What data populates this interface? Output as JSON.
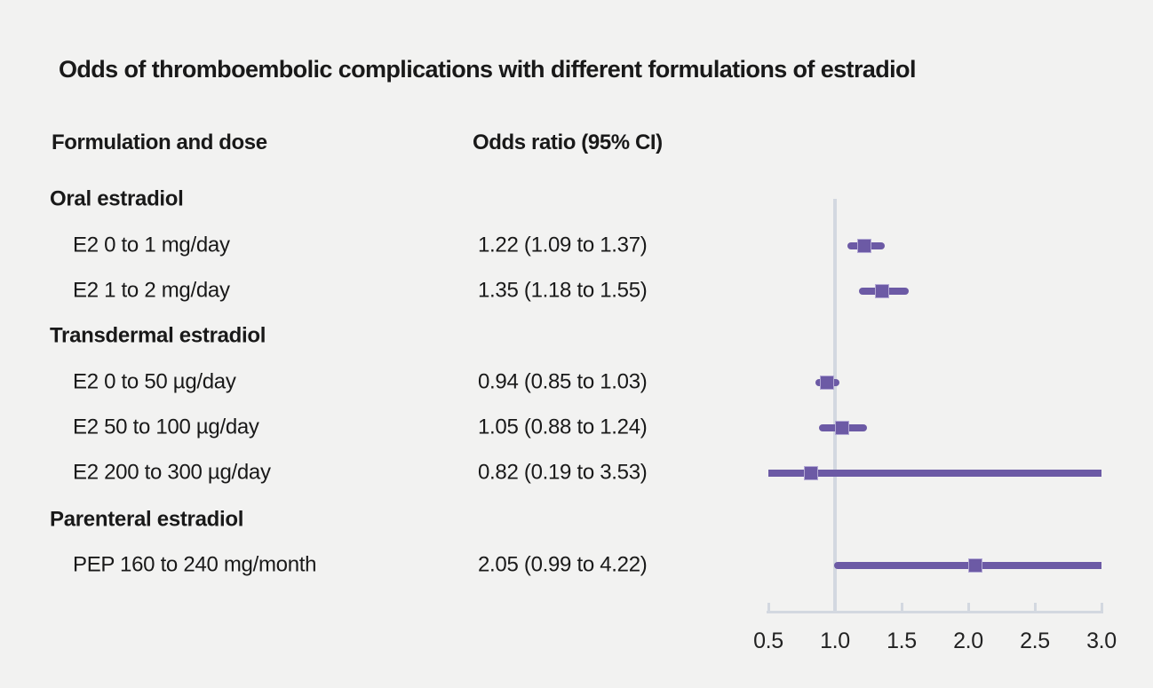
{
  "title": "Odds of thromboembolic complications with different formulations of estradiol",
  "columns": {
    "formulation": "Formulation and dose",
    "odds_ratio": "Odds ratio (95% CI)"
  },
  "axis": {
    "min": 0.5,
    "max": 3.0,
    "ticks": [
      0.5,
      1.0,
      1.5,
      2.0,
      2.5,
      3.0
    ],
    "tick_labels": [
      "0.5",
      "1.0",
      "1.5",
      "2.0",
      "2.5",
      "3.0"
    ],
    "reference_value": 1.0
  },
  "colors": {
    "marker_purple": "#6c5aa5",
    "marker_edge": "#b2a8d4",
    "axis_gray": "#d3d8e0",
    "background": "#f2f2f1",
    "text": "#191919"
  },
  "chart_data": {
    "type": "forest",
    "title": "Odds of thromboembolic complications with different formulations of estradiol",
    "xlabel": "",
    "xlim": [
      0.5,
      3.0
    ],
    "x_ticks": [
      0.5,
      1.0,
      1.5,
      2.0,
      2.5,
      3.0
    ],
    "reference_line": 1.0,
    "grid": false,
    "legend": "none",
    "columns": [
      "Formulation and dose",
      "Odds ratio (95% CI)"
    ],
    "rows": [
      {
        "kind": "section",
        "label": "Oral estradiol"
      },
      {
        "kind": "item",
        "label": "E2 0 to 1 mg/day",
        "or_text": "1.22 (1.09 to 1.37)",
        "estimate": 1.22,
        "ci_low": 1.09,
        "ci_high": 1.37
      },
      {
        "kind": "item",
        "label": "E2 1 to 2 mg/day",
        "or_text": "1.35 (1.18 to 1.55)",
        "estimate": 1.35,
        "ci_low": 1.18,
        "ci_high": 1.55
      },
      {
        "kind": "section",
        "label": "Transdermal estradiol"
      },
      {
        "kind": "item",
        "label": "E2 0 to 50 µg/day",
        "or_text": "0.94 (0.85 to 1.03)",
        "estimate": 0.94,
        "ci_low": 0.85,
        "ci_high": 1.03
      },
      {
        "kind": "item",
        "label": "E2 50 to 100 µg/day",
        "or_text": "1.05 (0.88 to 1.24)",
        "estimate": 1.05,
        "ci_low": 0.88,
        "ci_high": 1.24
      },
      {
        "kind": "item",
        "label": "E2 200 to 300 µg/day",
        "or_text": "0.82 (0.19 to 3.53)",
        "estimate": 0.82,
        "ci_low": 0.19,
        "ci_high": 3.53
      },
      {
        "kind": "section",
        "label": "Parenteral estradiol"
      },
      {
        "kind": "item",
        "label": "PEP 160 to 240 mg/month",
        "or_text": "2.05 (0.99 to 4.22)",
        "estimate": 2.05,
        "ci_low": 0.99,
        "ci_high": 4.22
      }
    ]
  }
}
